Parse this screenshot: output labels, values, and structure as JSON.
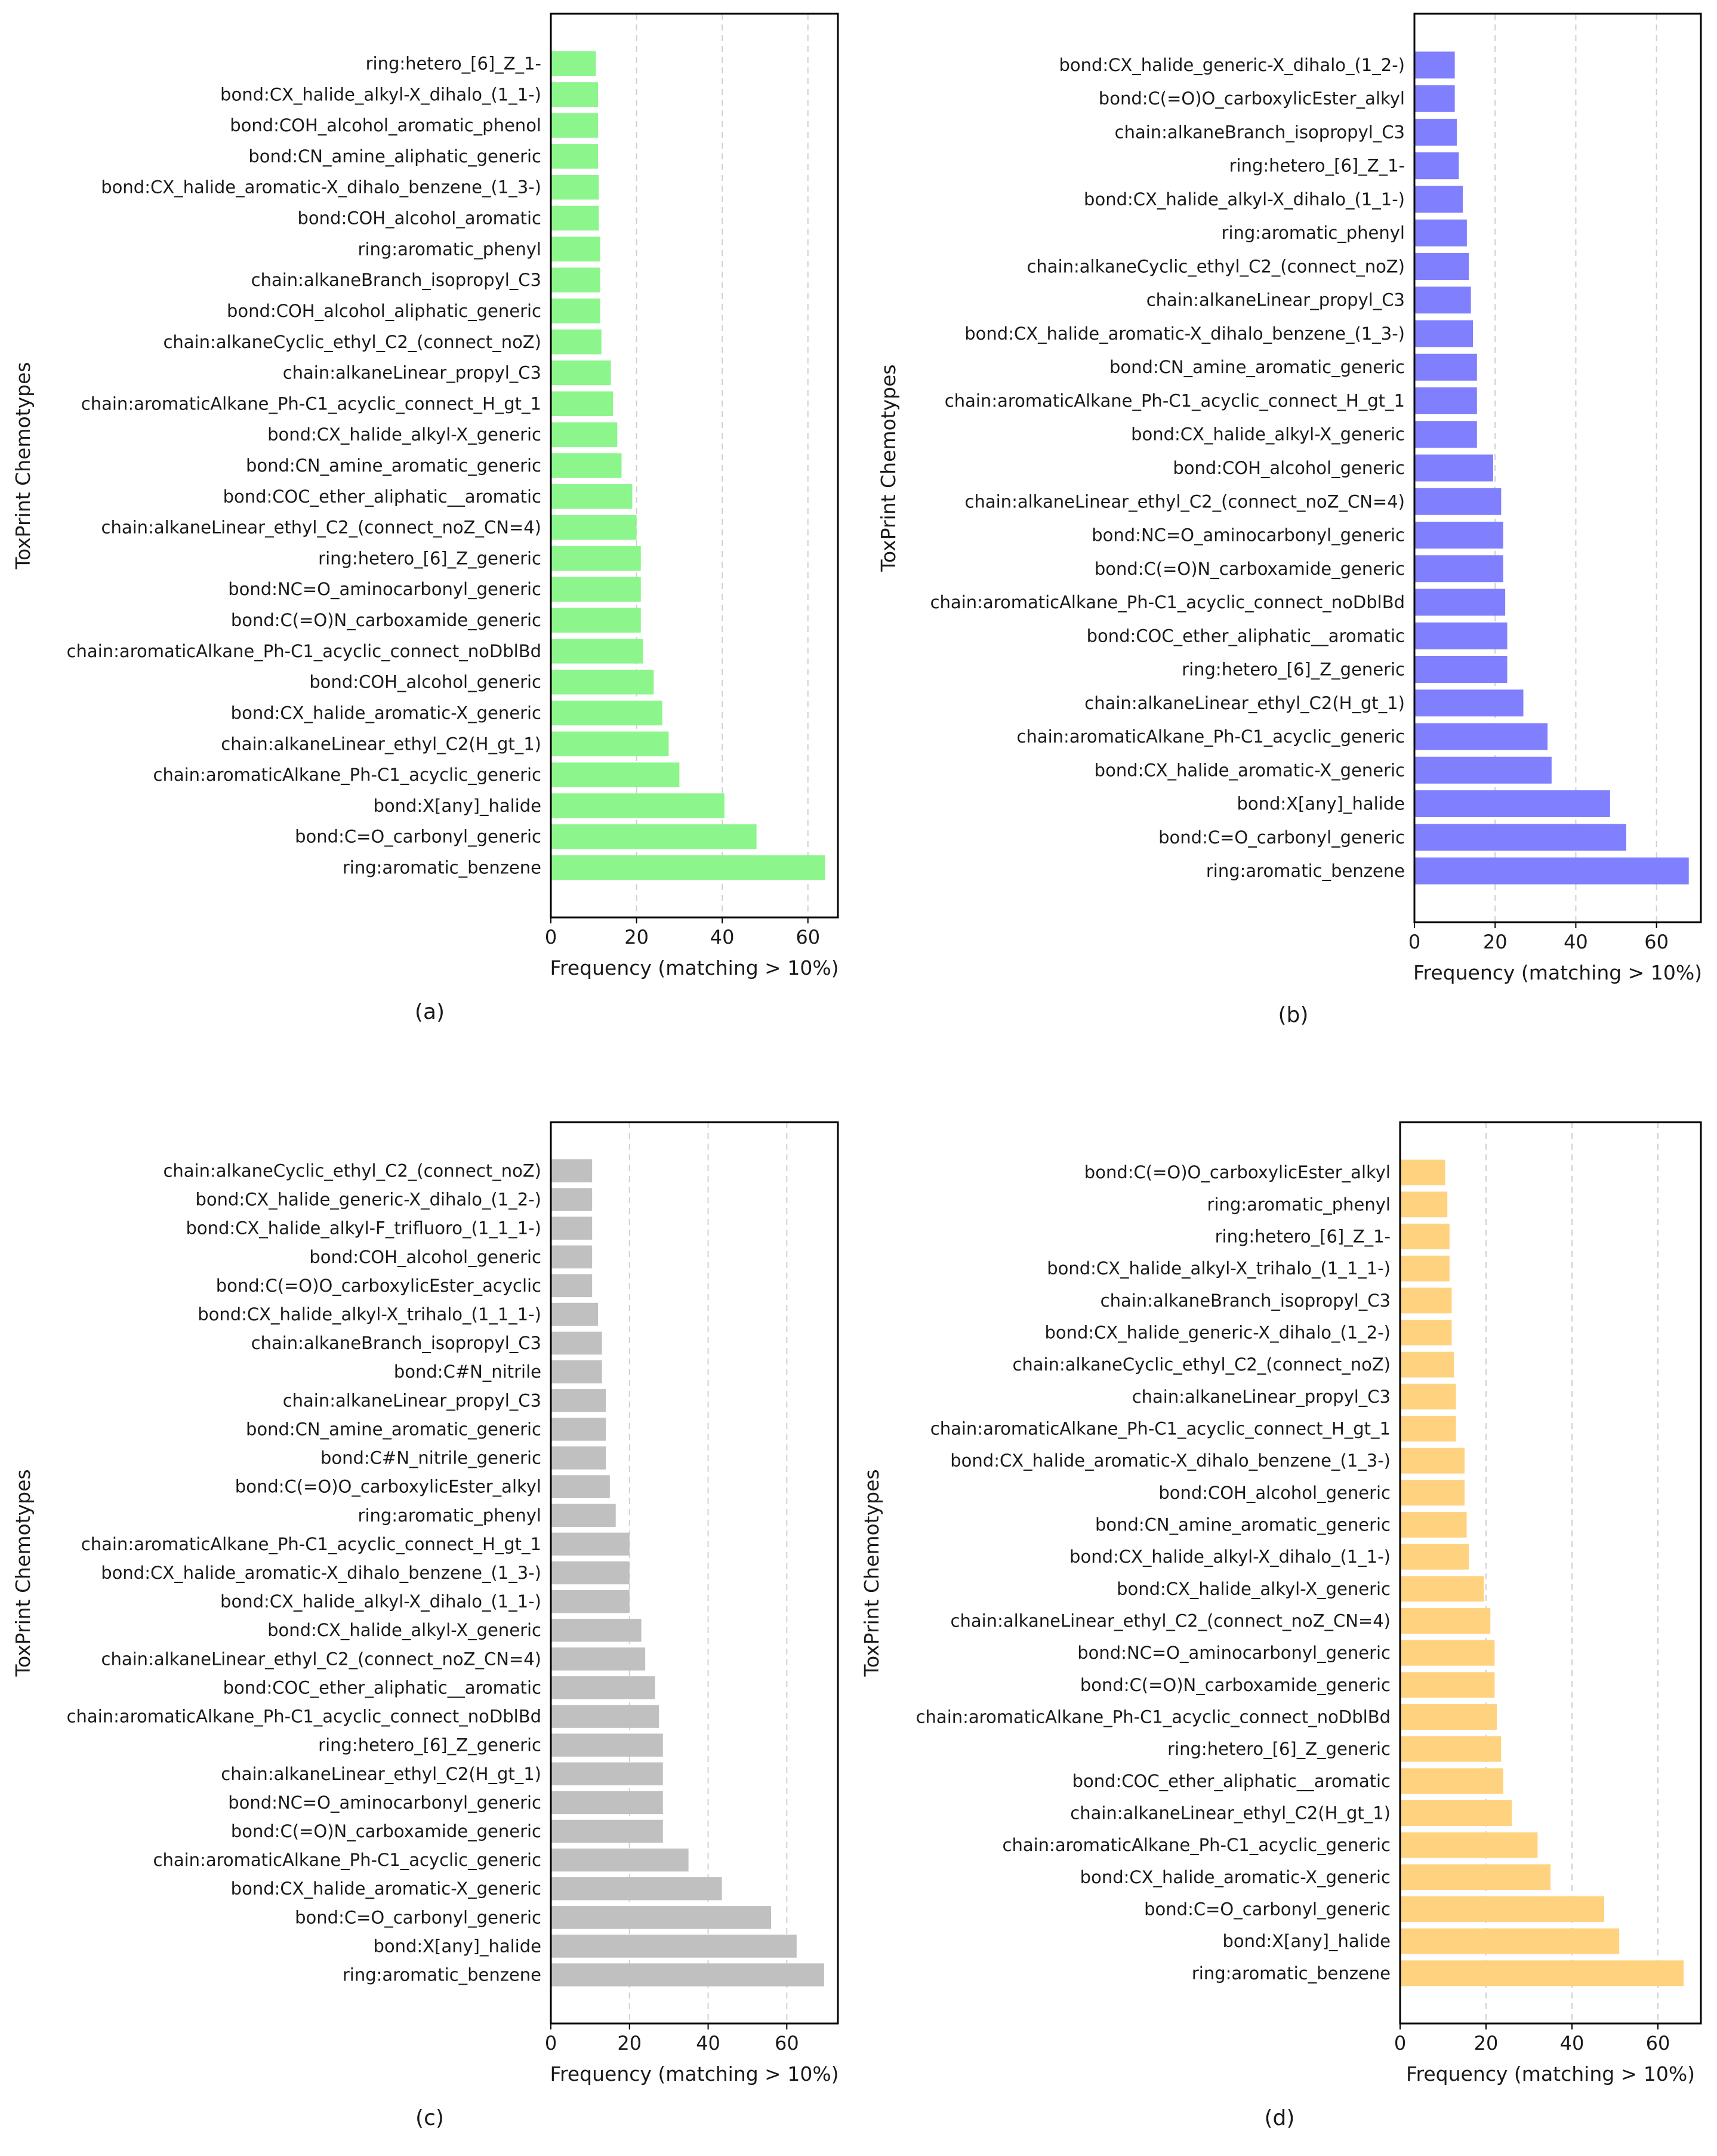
{
  "chart_data": [
    {
      "type": "bar",
      "orientation": "horizontal",
      "caption": "(a)",
      "xlabel": "Frequency (matching > 10%)",
      "ylabel": "ToxPrint Chemotypes",
      "xlim": [
        0,
        67
      ],
      "xticks": [
        0,
        20,
        40,
        60
      ],
      "grid": "x-dashed",
      "color": "#8cf58c",
      "categories": [
        "ring:hetero_[6]_Z_1-",
        "bond:CX_halide_alkyl-X_dihalo_(1_1-)",
        "bond:COH_alcohol_aromatic_phenol",
        "bond:CN_amine_aliphatic_generic",
        "bond:CX_halide_aromatic-X_dihalo_benzene_(1_3-)",
        "bond:COH_alcohol_aromatic",
        "ring:aromatic_phenyl",
        "chain:alkaneBranch_isopropyl_C3",
        "bond:COH_alcohol_aliphatic_generic",
        "chain:alkaneCyclic_ethyl_C2_(connect_noZ)",
        "chain:alkaneLinear_propyl_C3",
        "chain:aromaticAlkane_Ph-C1_acyclic_connect_H_gt_1",
        "bond:CX_halide_alkyl-X_generic",
        "bond:CN_amine_aromatic_generic",
        "bond:COC_ether_aliphatic__aromatic",
        "chain:alkaneLinear_ethyl_C2_(connect_noZ_CN=4)",
        "ring:hetero_[6]_Z_generic",
        "bond:NC=O_aminocarbonyl_generic",
        "bond:C(=O)N_carboxamide_generic",
        "chain:aromaticAlkane_Ph-C1_acyclic_connect_noDblBd",
        "bond:COH_alcohol_generic",
        "bond:CX_halide_aromatic-X_generic",
        "chain:alkaneLinear_ethyl_C2(H_gt_1)",
        "chain:aromaticAlkane_Ph-C1_acyclic_generic",
        "bond:X[any]_halide",
        "bond:C=O_carbonyl_generic",
        "ring:aromatic_benzene"
      ],
      "values": [
        10.5,
        11,
        11,
        11,
        11.2,
        11.2,
        11.5,
        11.5,
        11.5,
        11.8,
        14,
        14.5,
        15.5,
        16.5,
        19,
        20,
        21,
        21,
        21,
        21.5,
        24,
        26,
        27.5,
        30,
        40.5,
        48,
        64
      ]
    },
    {
      "type": "bar",
      "orientation": "horizontal",
      "caption": "(b)",
      "xlabel": "Frequency (matching > 10%)",
      "ylabel": "ToxPrint Chemotypes",
      "xlim": [
        0,
        71
      ],
      "xticks": [
        0,
        20,
        40,
        60
      ],
      "grid": "x-dashed",
      "color": "#8080ff",
      "categories": [
        "bond:CX_halide_generic-X_dihalo_(1_2-)",
        "bond:C(=O)O_carboxylicEster_alkyl",
        "chain:alkaneBranch_isopropyl_C3",
        "ring:hetero_[6]_Z_1-",
        "bond:CX_halide_alkyl-X_dihalo_(1_1-)",
        "ring:aromatic_phenyl",
        "chain:alkaneCyclic_ethyl_C2_(connect_noZ)",
        "chain:alkaneLinear_propyl_C3",
        "bond:CX_halide_aromatic-X_dihalo_benzene_(1_3-)",
        "bond:CN_amine_aromatic_generic",
        "chain:aromaticAlkane_Ph-C1_acyclic_connect_H_gt_1",
        "bond:CX_halide_alkyl-X_generic",
        "bond:COH_alcohol_generic",
        "chain:alkaneLinear_ethyl_C2_(connect_noZ_CN=4)",
        "bond:NC=O_aminocarbonyl_generic",
        "bond:C(=O)N_carboxamide_generic",
        "chain:aromaticAlkane_Ph-C1_acyclic_connect_noDblBd",
        "bond:COC_ether_aliphatic__aromatic",
        "ring:hetero_[6]_Z_generic",
        "chain:alkaneLinear_ethyl_C2(H_gt_1)",
        "chain:aromaticAlkane_Ph-C1_acyclic_generic",
        "bond:CX_halide_aromatic-X_generic",
        "bond:X[any]_halide",
        "bond:C=O_carbonyl_generic",
        "ring:aromatic_benzene"
      ],
      "values": [
        10,
        10,
        10.5,
        11,
        12,
        13,
        13.5,
        14,
        14.5,
        15.5,
        15.5,
        15.5,
        19.5,
        21.5,
        22,
        22,
        22.5,
        23,
        23,
        27,
        33,
        34,
        48.5,
        52.5,
        68
      ]
    },
    {
      "type": "bar",
      "orientation": "horizontal",
      "caption": "(c)",
      "xlabel": "Frequency (matching > 10%)",
      "ylabel": "ToxPrint Chemotypes",
      "xlim": [
        0,
        73
      ],
      "xticks": [
        0,
        20,
        40,
        60
      ],
      "grid": "x-dashed",
      "color": "#c0c0c0",
      "categories": [
        "chain:alkaneCyclic_ethyl_C2_(connect_noZ)",
        "bond:CX_halide_generic-X_dihalo_(1_2-)",
        "bond:CX_halide_alkyl-F_trifluoro_(1_1_1-)",
        "bond:COH_alcohol_generic",
        "bond:C(=O)O_carboxylicEster_acyclic",
        "bond:CX_halide_alkyl-X_trihalo_(1_1_1-)",
        "chain:alkaneBranch_isopropyl_C3",
        "bond:C#N_nitrile",
        "chain:alkaneLinear_propyl_C3",
        "bond:CN_amine_aromatic_generic",
        "bond:C#N_nitrile_generic",
        "bond:C(=O)O_carboxylicEster_alkyl",
        "ring:aromatic_phenyl",
        "chain:aromaticAlkane_Ph-C1_acyclic_connect_H_gt_1",
        "bond:CX_halide_aromatic-X_dihalo_benzene_(1_3-)",
        "bond:CX_halide_alkyl-X_dihalo_(1_1-)",
        "bond:CX_halide_alkyl-X_generic",
        "chain:alkaneLinear_ethyl_C2_(connect_noZ_CN=4)",
        "bond:COC_ether_aliphatic__aromatic",
        "chain:aromaticAlkane_Ph-C1_acyclic_connect_noDblBd",
        "ring:hetero_[6]_Z_generic",
        "chain:alkaneLinear_ethyl_C2(H_gt_1)",
        "bond:NC=O_aminocarbonyl_generic",
        "bond:C(=O)N_carboxamide_generic",
        "chain:aromaticAlkane_Ph-C1_acyclic_generic",
        "bond:CX_halide_aromatic-X_generic",
        "bond:C=O_carbonyl_generic",
        "bond:X[any]_halide",
        "ring:aromatic_benzene"
      ],
      "values": [
        10.5,
        10.5,
        10.5,
        10.5,
        10.5,
        12,
        13,
        13,
        14,
        14,
        14,
        15,
        16.5,
        20,
        20,
        20,
        23,
        24,
        26.5,
        27.5,
        28.5,
        28.5,
        28.5,
        28.5,
        35,
        43.5,
        56,
        62.5,
        69.5
      ]
    },
    {
      "type": "bar",
      "orientation": "horizontal",
      "caption": "(d)",
      "xlabel": "Frequency (matching > 10%)",
      "ylabel": "ToxPrint Chemotypes",
      "xlim": [
        0,
        70
      ],
      "xticks": [
        0,
        20,
        40,
        60
      ],
      "grid": "x-dashed",
      "color": "#ffd27f",
      "categories": [
        "bond:C(=O)O_carboxylicEster_alkyl",
        "ring:aromatic_phenyl",
        "ring:hetero_[6]_Z_1-",
        "bond:CX_halide_alkyl-X_trihalo_(1_1_1-)",
        "chain:alkaneBranch_isopropyl_C3",
        "bond:CX_halide_generic-X_dihalo_(1_2-)",
        "chain:alkaneCyclic_ethyl_C2_(connect_noZ)",
        "chain:alkaneLinear_propyl_C3",
        "chain:aromaticAlkane_Ph-C1_acyclic_connect_H_gt_1",
        "bond:CX_halide_aromatic-X_dihalo_benzene_(1_3-)",
        "bond:COH_alcohol_generic",
        "bond:CN_amine_aromatic_generic",
        "bond:CX_halide_alkyl-X_dihalo_(1_1-)",
        "bond:CX_halide_alkyl-X_generic",
        "chain:alkaneLinear_ethyl_C2_(connect_noZ_CN=4)",
        "bond:NC=O_aminocarbonyl_generic",
        "bond:C(=O)N_carboxamide_generic",
        "chain:aromaticAlkane_Ph-C1_acyclic_connect_noDblBd",
        "ring:hetero_[6]_Z_generic",
        "bond:COC_ether_aliphatic__aromatic",
        "chain:alkaneLinear_ethyl_C2(H_gt_1)",
        "chain:aromaticAlkane_Ph-C1_acyclic_generic",
        "bond:CX_halide_aromatic-X_generic",
        "bond:C=O_carbonyl_generic",
        "bond:X[any]_halide",
        "ring:aromatic_benzene"
      ],
      "values": [
        10.5,
        11,
        11.5,
        11.5,
        12,
        12,
        12.5,
        13,
        13,
        15,
        15,
        15.5,
        16,
        19.5,
        21,
        22,
        22,
        22.5,
        23.5,
        24,
        26,
        32,
        35,
        47.5,
        51,
        66
      ]
    }
  ]
}
